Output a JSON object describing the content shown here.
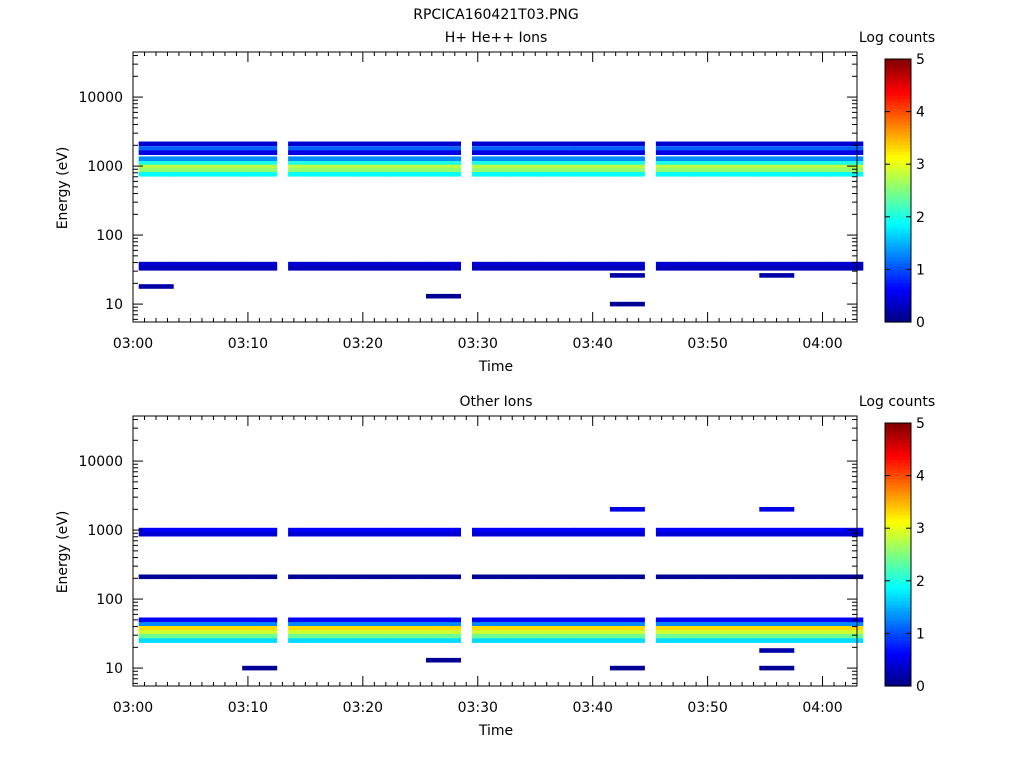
{
  "figure_title": "RPCICA160421T03.PNG",
  "colorbar": {
    "label": "Log counts",
    "ticks": [
      "0",
      "1",
      "2",
      "3",
      "4",
      "5"
    ],
    "min": 0,
    "max": 5,
    "colormap": "jet"
  },
  "axis_labels": {
    "x": "Time",
    "y": "Energy (eV)"
  },
  "chart_data": [
    {
      "type": "heatmap",
      "title": "H+ He++ Ions",
      "xlabel": "Time",
      "ylabel": "Energy (eV)",
      "x_range": [
        "03:00",
        "04:03"
      ],
      "x_ticks": [
        "03:00",
        "03:10",
        "03:20",
        "03:30",
        "03:40",
        "03:50",
        "04:00"
      ],
      "y_scale": "log",
      "y_range": [
        5.5,
        45000
      ],
      "y_ticks": [
        "10",
        "100",
        "1000",
        "10000"
      ],
      "time_columns": [
        "03:02",
        "03:05",
        "03:08",
        "03:11",
        "03:15",
        "03:18",
        "03:21",
        "03:24",
        "03:27",
        "03:31",
        "03:34",
        "03:37",
        "03:40",
        "03:43",
        "03:47",
        "03:50",
        "03:53",
        "03:56",
        "03:59",
        "04:02"
      ],
      "cells": [
        {
          "e": 1000,
          "v": 2.8,
          "span": "all"
        },
        {
          "e": 870,
          "v": 2.6,
          "span": "all"
        },
        {
          "e": 1130,
          "v": 2.0,
          "span": "all"
        },
        {
          "e": 760,
          "v": 1.9,
          "span": "all"
        },
        {
          "e": 1280,
          "v": 1.3,
          "span": "all"
        },
        {
          "e": 1800,
          "v": 1.1,
          "span": "all"
        },
        {
          "e": 1560,
          "v": 0.5,
          "span": "all"
        },
        {
          "e": 2100,
          "v": 0.4,
          "span": "all"
        },
        {
          "e": 38,
          "v": 0.4,
          "span": "all"
        },
        {
          "e": 33,
          "v": 0.3,
          "span": "all"
        },
        {
          "e": 10,
          "v": 0.1,
          "col": 13
        },
        {
          "e": 13,
          "v": 0.1,
          "col": 8
        },
        {
          "e": 18,
          "v": 0.2,
          "col": 0
        },
        {
          "e": 26,
          "v": 0.2,
          "col": 13
        },
        {
          "e": 26,
          "v": 0.2,
          "col": 17
        }
      ]
    },
    {
      "type": "heatmap",
      "title": "Other Ions",
      "xlabel": "Time",
      "ylabel": "Energy (eV)",
      "x_range": [
        "03:00",
        "04:03"
      ],
      "x_ticks": [
        "03:00",
        "03:10",
        "03:20",
        "03:30",
        "03:40",
        "03:50",
        "04:00"
      ],
      "y_scale": "log",
      "y_range": [
        5.5,
        45000
      ],
      "y_ticks": [
        "10",
        "100",
        "1000",
        "10000"
      ],
      "time_columns": [
        "03:02",
        "03:05",
        "03:08",
        "03:11",
        "03:15",
        "03:18",
        "03:21",
        "03:24",
        "03:27",
        "03:31",
        "03:34",
        "03:37",
        "03:40",
        "03:43",
        "03:47",
        "03:50",
        "03:53",
        "03:56",
        "03:59",
        "04:02"
      ],
      "cells": [
        {
          "e": 38,
          "v": 3.3,
          "span": "all"
        },
        {
          "e": 33,
          "v": 2.9,
          "span": "all"
        },
        {
          "e": 29,
          "v": 2.4,
          "span": "all"
        },
        {
          "e": 25,
          "v": 1.7,
          "span": "all"
        },
        {
          "e": 44,
          "v": 1.3,
          "span": "all"
        },
        {
          "e": 50,
          "v": 0.6,
          "span": "all"
        },
        {
          "e": 1000,
          "v": 0.6,
          "span": "all"
        },
        {
          "e": 870,
          "v": 0.4,
          "span": "all"
        },
        {
          "e": 210,
          "v": 0.1,
          "span": "all"
        },
        {
          "e": 10,
          "v": 0.1,
          "col": 3
        },
        {
          "e": 10,
          "v": 0.1,
          "col": 13
        },
        {
          "e": 10,
          "v": 0.1,
          "col": 17
        },
        {
          "e": 13,
          "v": 0.1,
          "col": 8
        },
        {
          "e": 18,
          "v": 0.2,
          "col": 17
        },
        {
          "e": 2000,
          "v": 0.5,
          "col": 13
        },
        {
          "e": 2000,
          "v": 0.5,
          "col": 17
        }
      ]
    }
  ]
}
